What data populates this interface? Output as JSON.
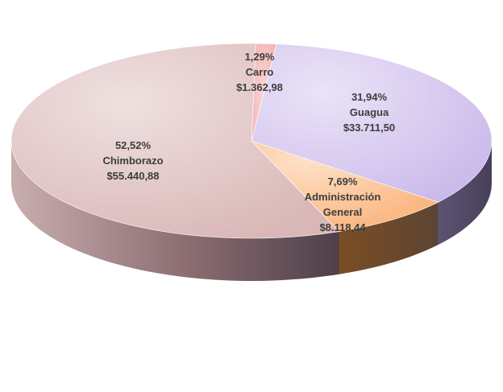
{
  "chart_data": {
    "type": "pie",
    "style": "3d",
    "categories": [
      "Carro",
      "Guagua",
      "Administración General",
      "Chimborazo"
    ],
    "values": [
      1362.98,
      33711.5,
      8118.44,
      55440.88
    ],
    "percents": [
      "1,29%",
      "31,94%",
      "7,69%",
      "52,52%"
    ],
    "amounts": [
      "$1.362,98",
      "$33.711,50",
      "$8.118,44",
      "$55.440,88"
    ],
    "label_lines": [
      [
        "1,29%",
        "Carro",
        "$1.362,98"
      ],
      [
        "31,94%",
        "Guagua",
        "$33.711,50"
      ],
      [
        "7,69%",
        "Administración",
        "General",
        "$8.118,44"
      ],
      [
        "52,52%",
        "Chimborazo",
        "$55.440,88"
      ]
    ],
    "colors": {
      "top": [
        "#f6c6c6",
        "#d8c9ee",
        "#fcd1a6",
        "#e3c8c8"
      ],
      "side": [
        "#c98f8f",
        "#5a5070",
        "#8a5a2c",
        "#9a7c80"
      ]
    },
    "title": "",
    "legend": "none"
  }
}
